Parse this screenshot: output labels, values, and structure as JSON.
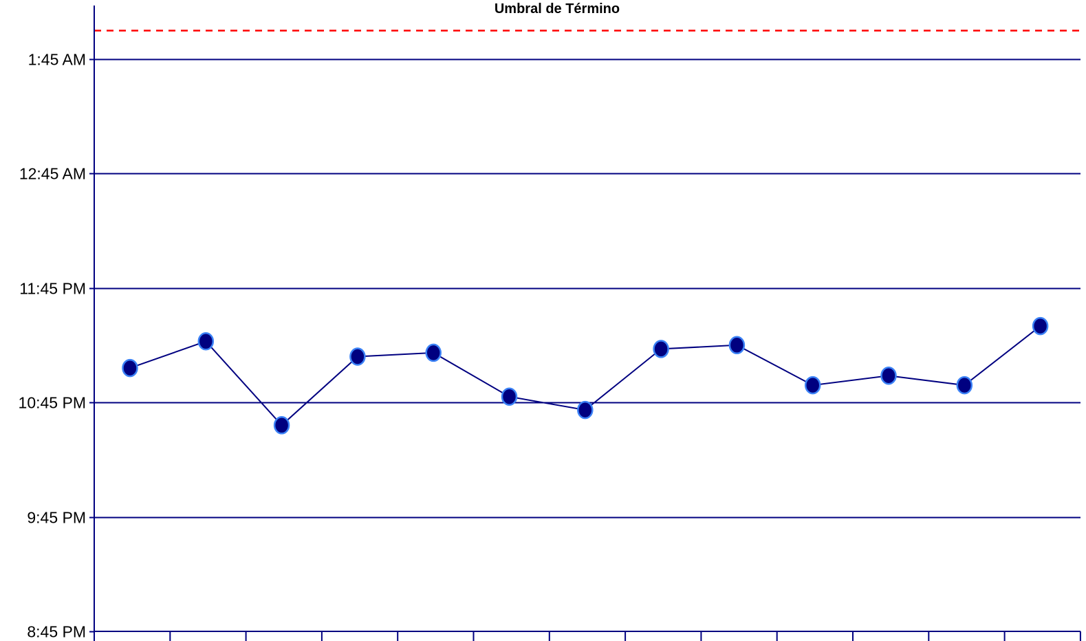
{
  "chart_data": {
    "type": "line",
    "title": "",
    "xlabel": "",
    "ylabel": "",
    "y_axis_format": "time",
    "ylim": [
      "8:45 PM",
      "2:00 AM"
    ],
    "y_ticks": [
      "8:45 PM",
      "9:45 PM",
      "10:45 PM",
      "11:45 PM",
      "12:45 AM",
      "1:45 AM"
    ],
    "grid": true,
    "x_tick_count": 13,
    "series": [
      {
        "values": [
          "11:03 PM",
          "11:17 PM",
          "10:33 PM",
          "11:09 PM",
          "11:11 PM",
          "10:48 PM",
          "10:41 PM",
          "11:13 PM",
          "11:15 PM",
          "10:54 PM",
          "10:59 PM",
          "10:54 PM",
          "11:25 PM"
        ],
        "color": "#000080"
      }
    ],
    "threshold": {
      "label": "Umbral de Término",
      "value": "2:00 AM",
      "color": "#ff0000",
      "style": "dashed"
    },
    "colors": {
      "axis": "#000080",
      "gridline": "#000080",
      "marker_fill": "#000080",
      "marker_stroke": "#3b82f6"
    }
  }
}
